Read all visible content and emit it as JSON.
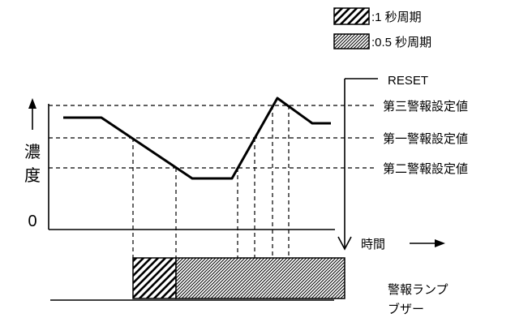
{
  "legend": {
    "items": [
      {
        "label": ":1 秒周期"
      },
      {
        "label": ":0.5 秒周期"
      }
    ]
  },
  "reset": {
    "label": "RESET"
  },
  "y_axis": {
    "chars": [
      "濃",
      "度"
    ],
    "zero_label": "0"
  },
  "x_axis": {
    "label": "時間"
  },
  "thresholds": [
    {
      "label": "第三警報設定値"
    },
    {
      "label": "第一警報設定値"
    },
    {
      "label": "第二警報設定値"
    }
  ],
  "output": {
    "labels": [
      "警報ランプ",
      "ブザー"
    ]
  },
  "colors": {
    "line": "#000000",
    "background": "#ffffff"
  }
}
